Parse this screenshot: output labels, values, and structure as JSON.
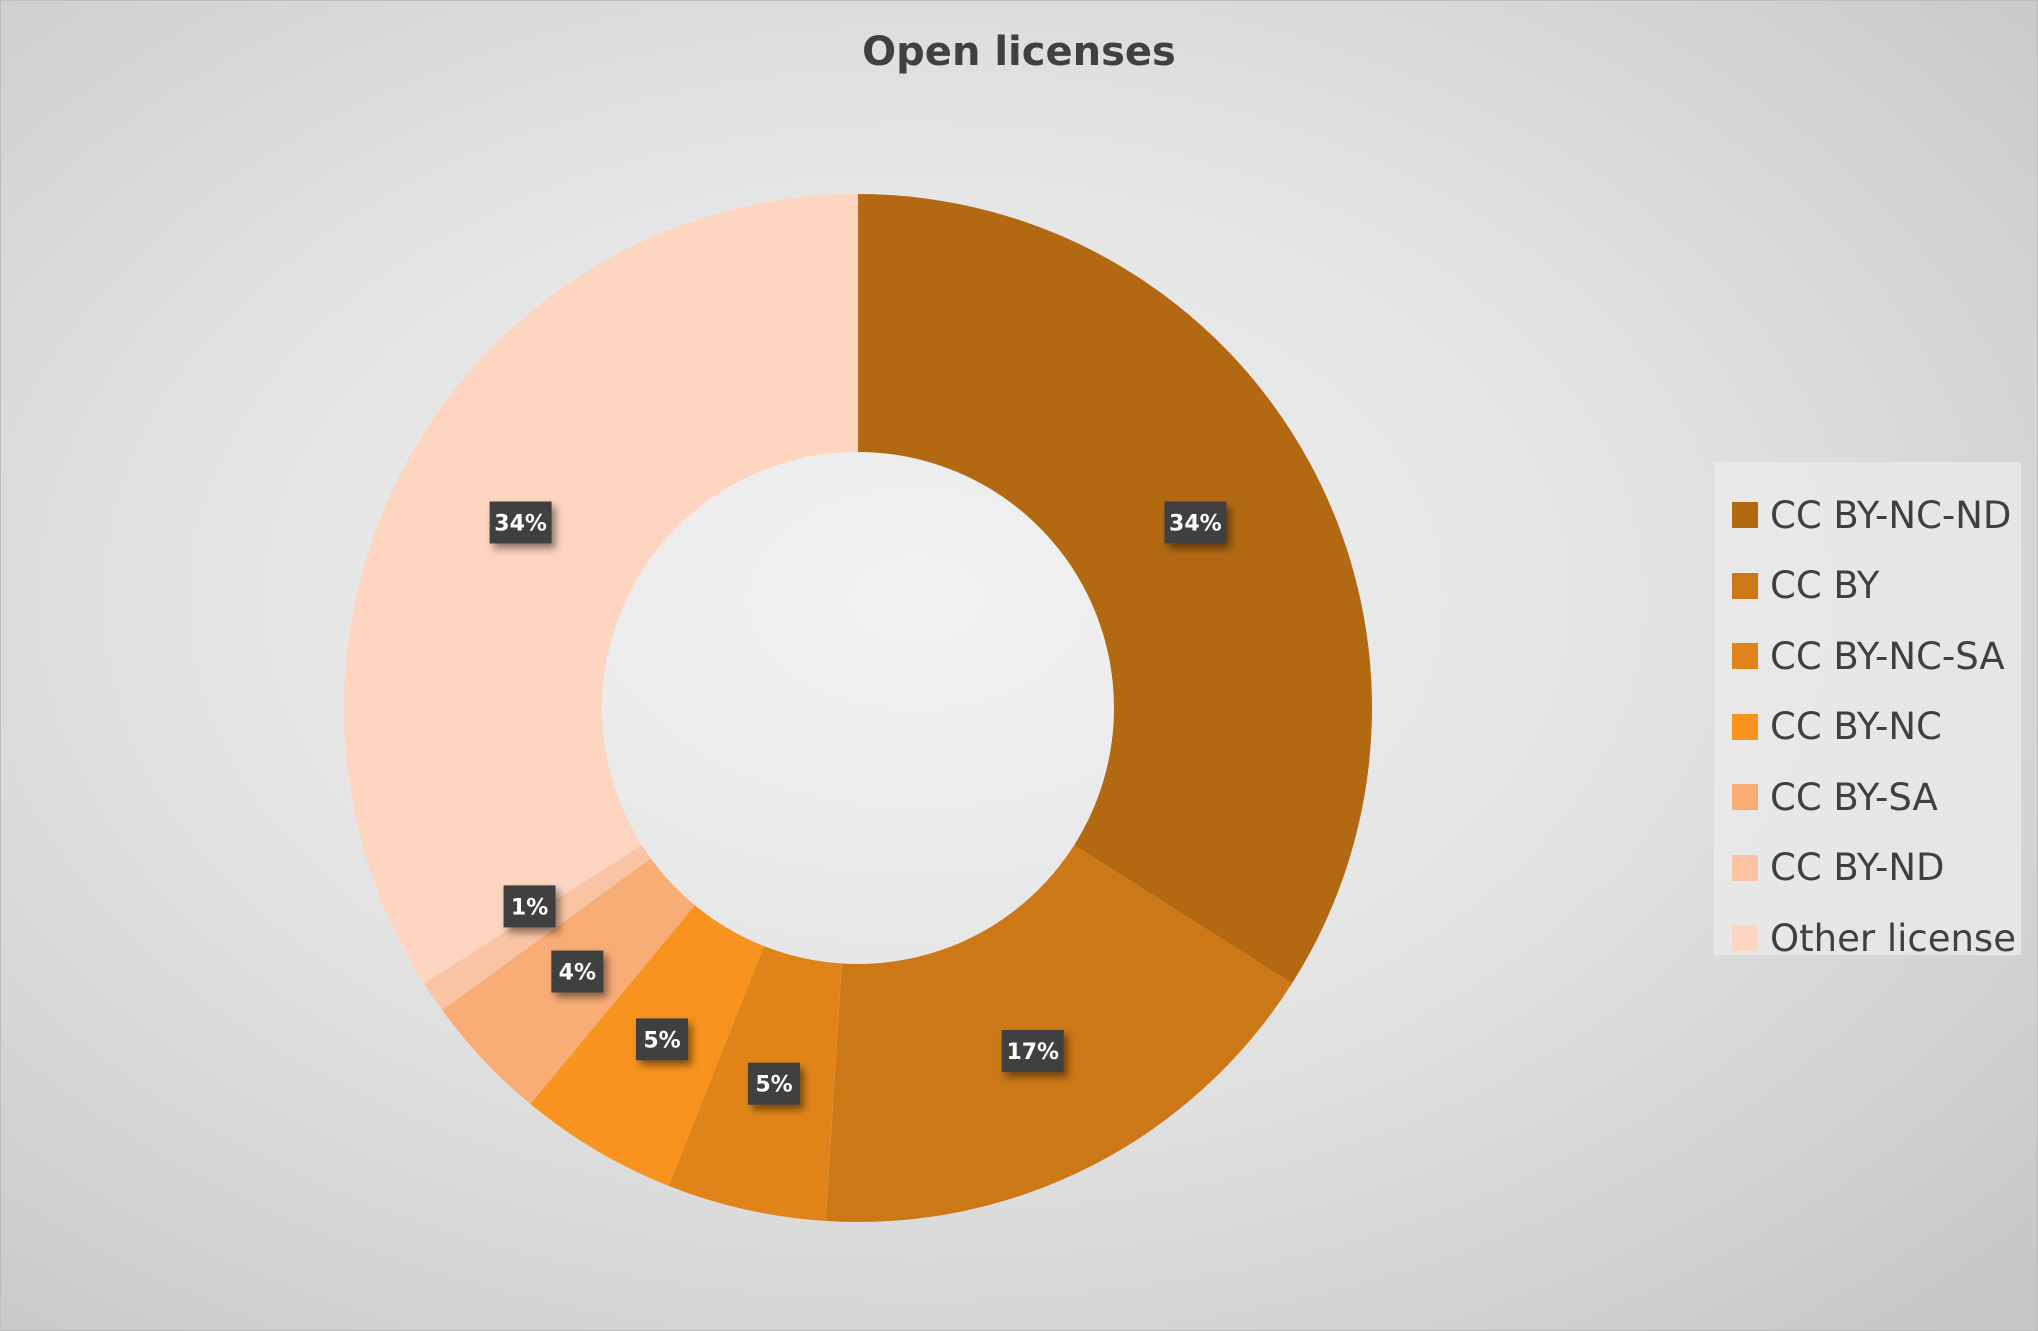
{
  "chart_data": {
    "type": "pie",
    "subtype": "doughnut",
    "title": "Open licenses",
    "categories": [
      "CC BY-NC-ND",
      "CC BY",
      "CC BY-NC-SA",
      "CC BY-NC",
      "CC BY-SA",
      "CC BY-ND",
      "Other license"
    ],
    "values": [
      34,
      17,
      5,
      5,
      4,
      1,
      34
    ],
    "data_labels": [
      "34%",
      "17%",
      "5%",
      "5%",
      "4%",
      "1%",
      "34%"
    ],
    "colors": [
      "#b26912",
      "#cc7817",
      "#e0841a",
      "#f7931e",
      "#f8ac76",
      "#fac3a3",
      "#fdd5c0"
    ],
    "legend_position": "right",
    "start_angle_deg": 0,
    "direction": "clockwise"
  }
}
